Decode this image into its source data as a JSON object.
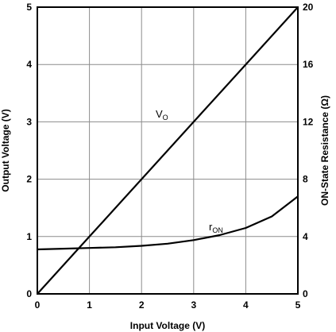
{
  "chart_data": {
    "type": "line",
    "xlabel": "Input Voltage (V)",
    "ylabel": "Output Voltage (V)",
    "ylabel_right": "ON-State Resistance (Ω)",
    "xlim": [
      0,
      5
    ],
    "ylim": [
      0,
      5
    ],
    "ylim_right": [
      0,
      20
    ],
    "x_ticks": [
      "0",
      "1",
      "2",
      "3",
      "4",
      "5"
    ],
    "y_ticks": [
      "0",
      "1",
      "2",
      "3",
      "4",
      "5"
    ],
    "y_ticks_right": [
      "0",
      "4",
      "8",
      "12",
      "16",
      "20"
    ],
    "grid": true,
    "series": [
      {
        "name_main": "V",
        "name_sub": "O",
        "axis": "left",
        "x": [
          0,
          1,
          2,
          3,
          4,
          5
        ],
        "y": [
          0,
          1,
          2,
          3,
          4,
          5
        ]
      },
      {
        "name_main": "r",
        "name_sub": "ON",
        "axis": "right",
        "x": [
          0,
          0.5,
          1,
          1.5,
          2,
          2.5,
          3,
          3.5,
          4,
          4.5,
          5
        ],
        "y": [
          3.1,
          3.15,
          3.2,
          3.25,
          3.35,
          3.5,
          3.75,
          4.1,
          4.6,
          5.4,
          6.8
        ]
      }
    ]
  }
}
